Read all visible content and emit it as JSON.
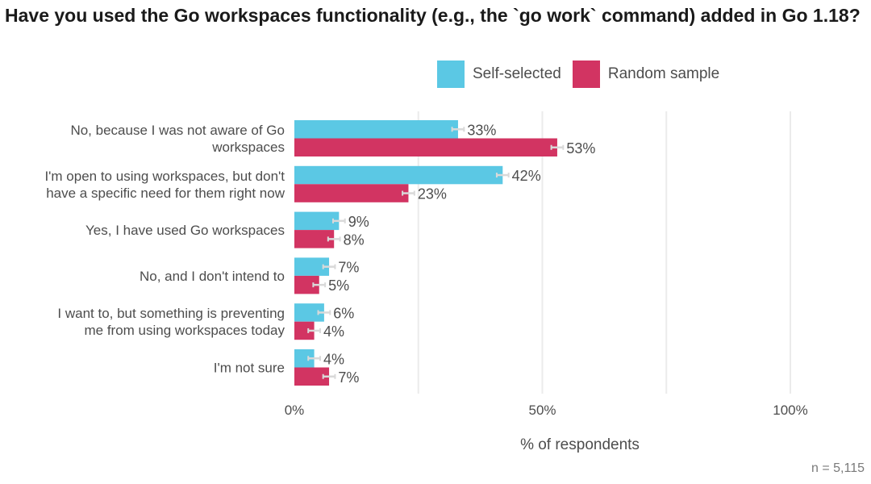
{
  "colors": {
    "self_selected": "#5bc8e4",
    "random_sample": "#d23462",
    "grid": "#ebebeb",
    "error_bar": "#d9d9d9",
    "text": "#4d4d4d"
  },
  "chart_data": {
    "type": "bar",
    "orientation": "horizontal",
    "title": "Have you used the Go workspaces functionality (e.g., the `go work` command) added in Go 1.18?",
    "xlabel": "% of respondents",
    "ylabel": "",
    "xlim": [
      0,
      100
    ],
    "x_ticks": [
      0,
      50,
      100
    ],
    "x_tick_labels": [
      "0%",
      "50%",
      "100%"
    ],
    "grid": true,
    "legend_position": "top-right",
    "categories": [
      [
        "No, because I was not aware of Go",
        "workspaces"
      ],
      [
        "I'm open to using workspaces, but don't",
        "have a specific need for them right now"
      ],
      [
        "Yes, I have used Go workspaces"
      ],
      [
        "No, and I don't intend to"
      ],
      [
        "I want to, but something is preventing",
        "me from using workspaces today"
      ],
      [
        "I'm not sure"
      ]
    ],
    "series": [
      {
        "name": "Self-selected",
        "values": [
          33,
          42,
          9,
          7,
          6,
          4
        ],
        "labels": [
          "33%",
          "42%",
          "9%",
          "7%",
          "6%",
          "4%"
        ]
      },
      {
        "name": "Random sample",
        "values": [
          53,
          23,
          8,
          5,
          4,
          7
        ],
        "labels": [
          "53%",
          "23%",
          "8%",
          "5%",
          "4%",
          "7%"
        ]
      }
    ],
    "note": "n =  5,115"
  }
}
